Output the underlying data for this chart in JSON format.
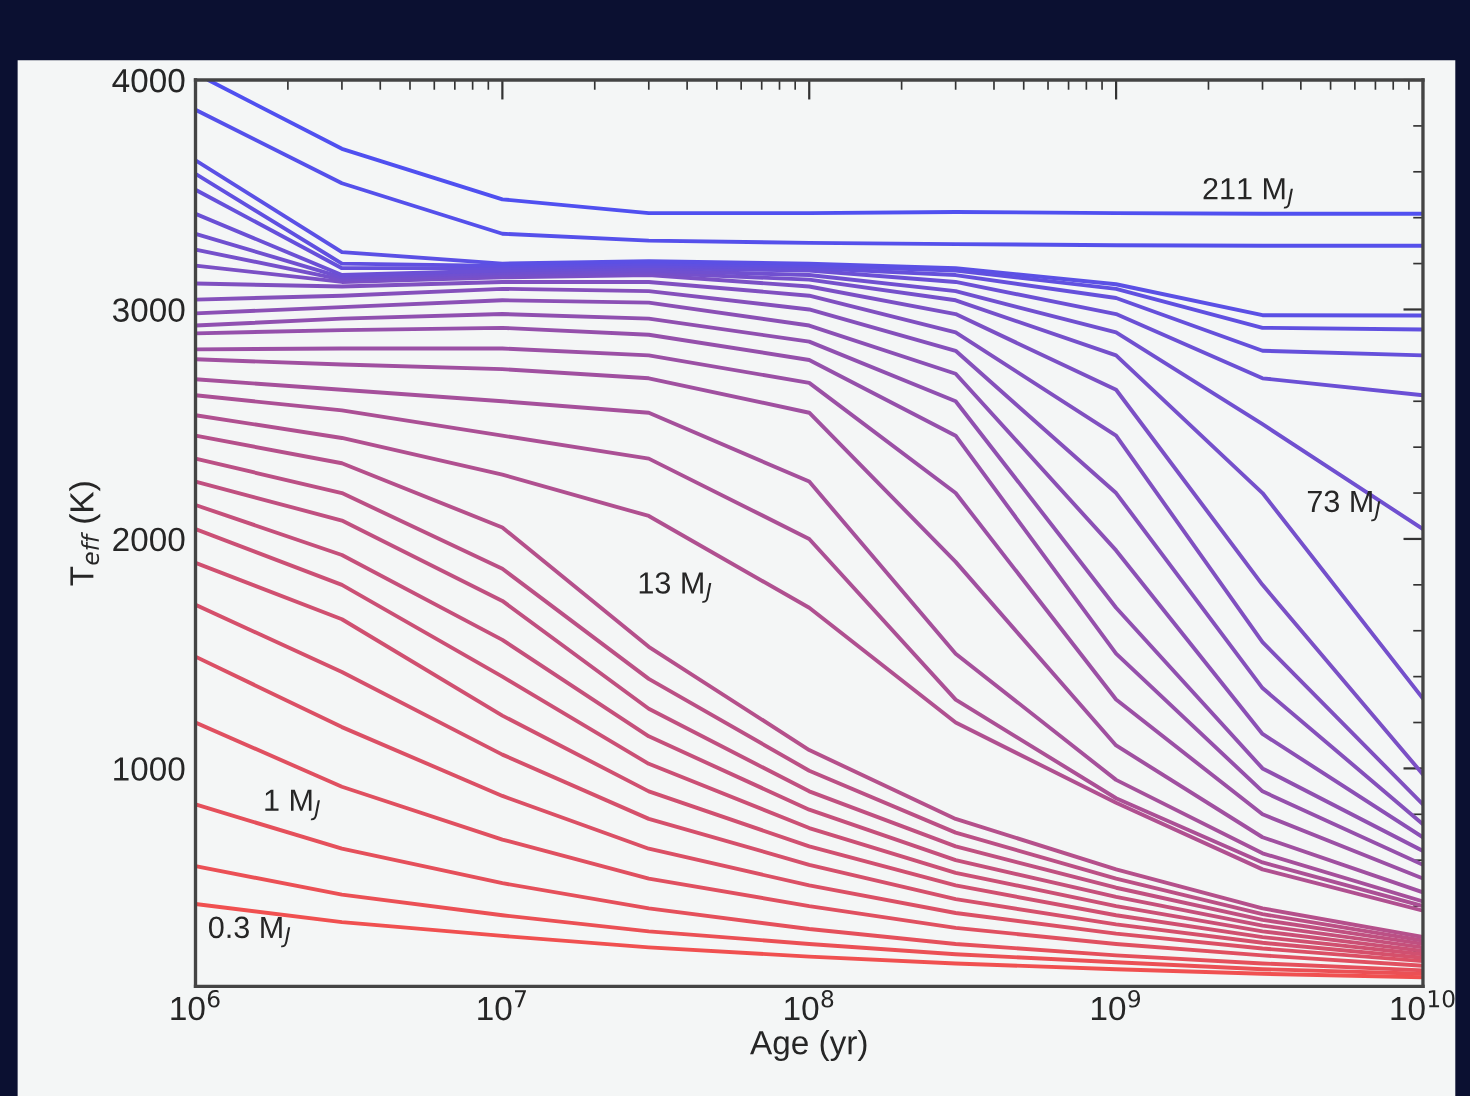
{
  "chart_data": {
    "type": "line",
    "xlabel": "Age (yr)",
    "ylabel": "T$_{eff}$ (K)",
    "log": "x",
    "xlim": [
      1000000,
      10000000000
    ],
    "ylim": [
      50,
      4000
    ],
    "xticks": [
      {
        "value": 1000000,
        "label": "10$^{6}$"
      },
      {
        "value": 10000000,
        "label": "10$^{7}$"
      },
      {
        "value": 100000000,
        "label": "10$^{8}$"
      },
      {
        "value": 1000000000,
        "label": "10$^{9}$"
      },
      {
        "value": 10000000000,
        "label": "10$^{10}$"
      }
    ],
    "yticks": [
      1000,
      2000,
      3000,
      4000
    ],
    "grid": false,
    "legend": false,
    "marker": "none",
    "line_style": "solid",
    "x": [
      1000000,
      3000000,
      10000000,
      30000000,
      100000000,
      300000000,
      1000000000,
      3000000000,
      10000000000
    ],
    "series": [
      {
        "color": "#f05050",
        "values": [
          409,
          330,
          270,
          220,
          180,
          150,
          125,
          105,
          90
        ]
      },
      {
        "color": "#eb5055",
        "values": [
          574,
          450,
          360,
          290,
          235,
          190,
          155,
          125,
          105
        ]
      },
      {
        "color": "#e5505b",
        "values": [
          843,
          650,
          500,
          390,
          300,
          235,
          185,
          150,
          120
        ]
      },
      {
        "color": "#e05060",
        "values": [
          1200,
          920,
          690,
          520,
          400,
          305,
          235,
          185,
          140
        ]
      },
      {
        "color": "#db5065",
        "values": [
          1487,
          1180,
          880,
          650,
          490,
          370,
          280,
          215,
          160
        ]
      },
      {
        "color": "#d5506b",
        "values": [
          1713,
          1420,
          1060,
          780,
          580,
          430,
          320,
          240,
          175
        ]
      },
      {
        "color": "#d05070",
        "values": [
          1896,
          1650,
          1230,
          900,
          660,
          490,
          360,
          265,
          190
        ]
      },
      {
        "color": "#cb5075",
        "values": [
          2043,
          1800,
          1400,
          1020,
          740,
          545,
          400,
          290,
          205
        ]
      },
      {
        "color": "#c5507b",
        "values": [
          2148,
          1930,
          1560,
          1140,
          820,
          600,
          440,
          315,
          220
        ]
      },
      {
        "color": "#c05080",
        "values": [
          2250,
          2080,
          1730,
          1260,
          900,
          660,
          480,
          340,
          235
        ]
      },
      {
        "color": "#bb5085",
        "values": [
          2350,
          2200,
          1870,
          1390,
          990,
          720,
          520,
          365,
          250
        ]
      },
      {
        "color": "#b5508b",
        "values": [
          2450,
          2330,
          2050,
          1530,
          1080,
          780,
          560,
          390,
          265
        ]
      },
      {
        "color": "#b05090",
        "values": [
          2539,
          2440,
          2280,
          2100,
          1700,
          1200,
          850,
          560,
          380
        ]
      },
      {
        "color": "#ab5095",
        "values": [
          2626,
          2560,
          2450,
          2350,
          2000,
          1300,
          870,
          590,
          400
        ]
      },
      {
        "color": "#a5509b",
        "values": [
          2696,
          2650,
          2600,
          2550,
          2250,
          1500,
          950,
          630,
          420
        ]
      },
      {
        "color": "#a050a0",
        "values": [
          2783,
          2760,
          2740,
          2700,
          2550,
          1900,
          1100,
          700,
          460
        ]
      },
      {
        "color": "#9b50a5",
        "values": [
          2826,
          2830,
          2830,
          2800,
          2680,
          2200,
          1300,
          800,
          520
        ]
      },
      {
        "color": "#9550ab",
        "values": [
          2896,
          2910,
          2920,
          2890,
          2780,
          2450,
          1500,
          900,
          580
        ]
      },
      {
        "color": "#9050b0",
        "values": [
          2930,
          2960,
          2980,
          2960,
          2860,
          2600,
          1700,
          1000,
          640
        ]
      },
      {
        "color": "#8b50b5",
        "values": [
          2983,
          3010,
          3040,
          3030,
          2930,
          2720,
          1950,
          1150,
          700
        ]
      },
      {
        "color": "#8550bb",
        "values": [
          3043,
          3060,
          3090,
          3080,
          3000,
          2820,
          2200,
          1350,
          757
        ]
      },
      {
        "color": "#8050c0",
        "values": [
          3113,
          3100,
          3120,
          3120,
          3060,
          2900,
          2450,
          1550,
          843
        ]
      },
      {
        "color": "#7b50c5",
        "values": [
          3191,
          3120,
          3140,
          3150,
          3100,
          2980,
          2650,
          1800,
          974
        ]
      },
      {
        "color": "#7550cb",
        "values": [
          3261,
          3130,
          3150,
          3160,
          3130,
          3040,
          2800,
          2200,
          1304
        ]
      },
      {
        "color": "#7050d0",
        "values": [
          3330,
          3140,
          3160,
          3170,
          3150,
          3080,
          2900,
          2500,
          2043
        ]
      },
      {
        "color": "#6b50d5",
        "values": [
          3417,
          3150,
          3170,
          3180,
          3170,
          3120,
          2980,
          2700,
          2626
        ]
      },
      {
        "color": "#6550db",
        "values": [
          3522,
          3180,
          3180,
          3190,
          3180,
          3150,
          3050,
          2820,
          2800
        ]
      },
      {
        "color": "#6050e0",
        "values": [
          3591,
          3200,
          3190,
          3200,
          3190,
          3170,
          3090,
          2920,
          2913
        ]
      },
      {
        "color": "#5b50e5",
        "values": [
          3650,
          3250,
          3200,
          3210,
          3200,
          3180,
          3110,
          2975,
          2974
        ]
      },
      {
        "color": "#5550eb",
        "values": [
          3870,
          3550,
          3330,
          3300,
          3290,
          3285,
          3280,
          3278,
          3278
        ]
      },
      {
        "color": "#5050f0",
        "x": [
          1100000,
          3000000,
          10000000,
          30000000,
          100000000,
          300000000,
          1000000000,
          3000000000,
          10000000000
        ],
        "values": [
          4000,
          3700,
          3480,
          3420,
          3420,
          3425,
          3420,
          3417,
          3417
        ]
      }
    ],
    "annotations": [
      "211 M$_{J}$",
      "73 M$_{J}$",
      "13 M$_{J}$",
      "1 M$_{J}$",
      "0.3 M$_{J}$"
    ]
  }
}
